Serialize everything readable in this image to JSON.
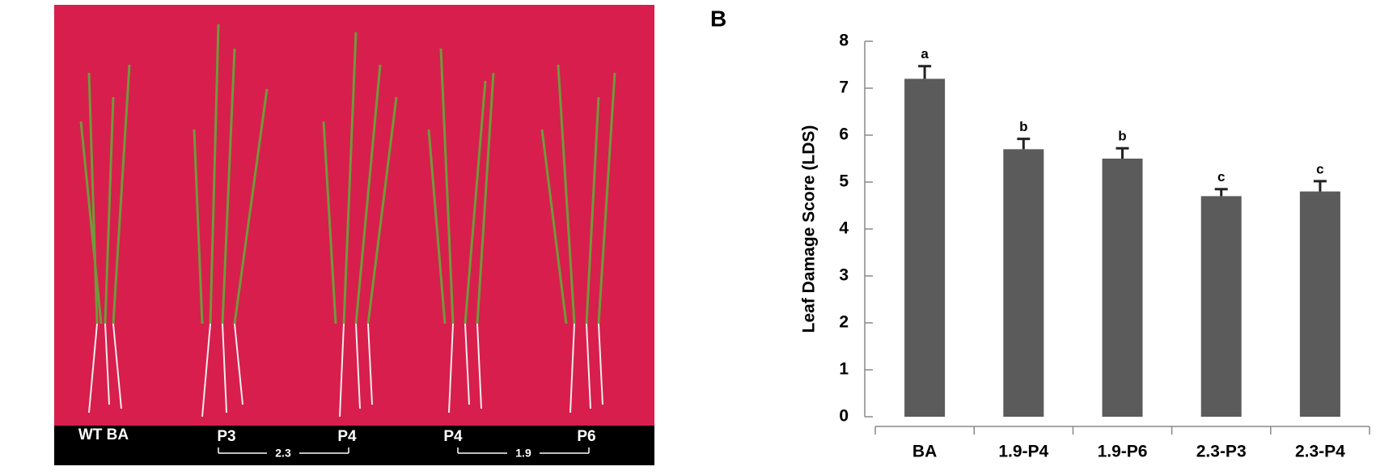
{
  "photo": {
    "labels": [
      "WT BA",
      "P3",
      "P4",
      "P4",
      "P6"
    ],
    "scale_labels": [
      "2.3",
      "1.9"
    ]
  },
  "chart_data": {
    "type": "bar",
    "panel_label": "B",
    "ylabel": "Leaf Damage Score (LDS)",
    "categories": [
      "BA",
      "1.9-P4",
      "1.9-P6",
      "2.3-P3",
      "2.3-P4"
    ],
    "values": [
      7.2,
      5.7,
      5.5,
      4.7,
      4.8
    ],
    "errors": [
      0.27,
      0.22,
      0.22,
      0.15,
      0.22
    ],
    "annotations": [
      "a",
      "b",
      "b",
      "c",
      "c"
    ],
    "color": "#5b5b5b",
    "ylim": [
      0,
      8
    ],
    "yticks": [
      0,
      1,
      2,
      3,
      4,
      5,
      6,
      7,
      8
    ]
  }
}
